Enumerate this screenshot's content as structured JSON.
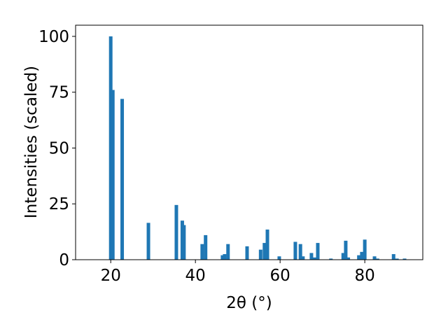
{
  "chart_data": {
    "type": "bar",
    "x_label": "2θ (°)",
    "y_label": "Intensities (scaled)",
    "x": [
      20.0,
      20.5,
      22.7,
      28.9,
      35.5,
      36.9,
      37.3,
      41.6,
      42.4,
      46.4,
      46.9,
      47.7,
      52.2,
      55.4,
      56.3,
      57.0,
      59.8,
      63.6,
      64.8,
      65.4,
      67.4,
      68.1,
      68.9,
      72.0,
      74.9,
      75.5,
      76.1,
      78.6,
      79.3,
      80.0,
      82.3,
      83.0,
      86.8,
      87.6,
      89.4
    ],
    "values": [
      100,
      76,
      72,
      16.5,
      24.5,
      17.5,
      15.5,
      7,
      11,
      2,
      2.5,
      7,
      6,
      4.5,
      7.5,
      13.5,
      1.5,
      8,
      7,
      1.5,
      3,
      1,
      7.5,
      0.5,
      3,
      8.5,
      1,
      2,
      3.5,
      9,
      1.5,
      0.5,
      2.5,
      0.5,
      0.5
    ],
    "color": "#1f77b4",
    "xlim": [
      11.7,
      93.7
    ],
    "xticks": [
      20,
      40,
      60,
      80
    ],
    "ylim": [
      0,
      105
    ],
    "yticks": [
      0,
      25,
      50,
      75,
      100
    ]
  }
}
